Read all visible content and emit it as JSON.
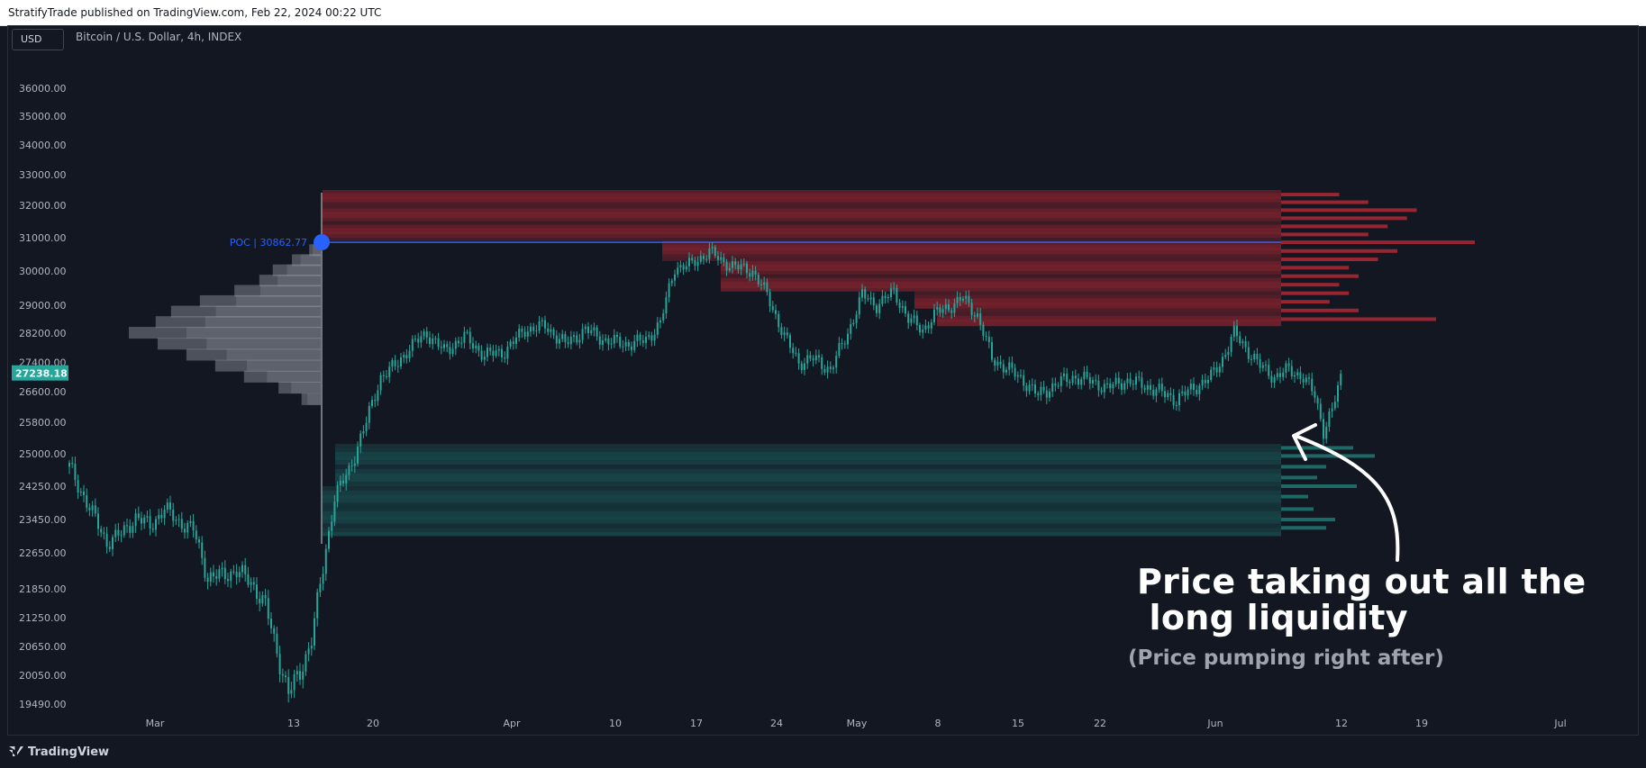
{
  "header": {
    "title": "StratifyTrade published on TradingView.com, Feb 22, 2024 00:22 UTC"
  },
  "toolbar": {
    "currency": "USD",
    "symbol": "Bitcoin / U.S. Dollar, 4h, INDEX"
  },
  "footer": {
    "brand": "TradingView"
  },
  "colors": {
    "background": "#131722",
    "candle": "#26a69a",
    "bear_zone": "#b22833",
    "bull_zone": "#1f7e78",
    "poc": "#2962ff",
    "profile": "#9598a1"
  },
  "chart_data": {
    "type": "candlestick",
    "title": "Bitcoin / U.S. Dollar, 4h, INDEX",
    "y_ticks": [
      "36000.00",
      "35000.00",
      "34000.00",
      "33000.00",
      "32000.00",
      "31000.00",
      "30000.00",
      "29000.00",
      "28200.00",
      "26600.00",
      "25800.00",
      "25000.00",
      "24250.00",
      "23450.00",
      "22650.00",
      "21850.00",
      "21250.00",
      "20650.00",
      "20050.00",
      "19490.00"
    ],
    "x_ticks": [
      "Mar",
      "13",
      "20",
      "Apr",
      "10",
      "17",
      "24",
      "May",
      "8",
      "15",
      "22",
      "Jun",
      "12",
      "19",
      "Jul"
    ],
    "last_price": "27238.18",
    "hidden_price_label": "27400.00",
    "poc": {
      "label": "POC | 30862.77",
      "price": 30862.77
    },
    "price_path": [
      {
        "x": 0,
        "p": 24700
      },
      {
        "x": 5,
        "p": 24000
      },
      {
        "x": 9,
        "p": 23450
      },
      {
        "x": 13,
        "p": 22900
      },
      {
        "x": 18,
        "p": 23100
      },
      {
        "x": 23,
        "p": 23500
      },
      {
        "x": 28,
        "p": 23300
      },
      {
        "x": 33,
        "p": 23700
      },
      {
        "x": 38,
        "p": 23400
      },
      {
        "x": 43,
        "p": 23200
      },
      {
        "x": 48,
        "p": 22100
      },
      {
        "x": 53,
        "p": 22150
      },
      {
        "x": 58,
        "p": 22250
      },
      {
        "x": 63,
        "p": 22000
      },
      {
        "x": 68,
        "p": 21500
      },
      {
        "x": 73,
        "p": 20300
      },
      {
        "x": 76,
        "p": 19700
      },
      {
        "x": 80,
        "p": 20100
      },
      {
        "x": 84,
        "p": 20800
      },
      {
        "x": 88,
        "p": 22300
      },
      {
        "x": 92,
        "p": 24000
      },
      {
        "x": 97,
        "p": 24600
      },
      {
        "x": 103,
        "p": 25800
      },
      {
        "x": 108,
        "p": 27000
      },
      {
        "x": 113,
        "p": 27300
      },
      {
        "x": 118,
        "p": 27800
      },
      {
        "x": 124,
        "p": 28200
      },
      {
        "x": 130,
        "p": 27700
      },
      {
        "x": 137,
        "p": 28100
      },
      {
        "x": 144,
        "p": 27600
      },
      {
        "x": 151,
        "p": 27700
      },
      {
        "x": 158,
        "p": 28300
      },
      {
        "x": 165,
        "p": 28400
      },
      {
        "x": 172,
        "p": 27900
      },
      {
        "x": 179,
        "p": 28300
      },
      {
        "x": 186,
        "p": 28000
      },
      {
        "x": 193,
        "p": 27900
      },
      {
        "x": 200,
        "p": 28000
      },
      {
        "x": 205,
        "p": 28500
      },
      {
        "x": 210,
        "p": 30100
      },
      {
        "x": 216,
        "p": 30200
      },
      {
        "x": 222,
        "p": 30600
      },
      {
        "x": 226,
        "p": 30300
      },
      {
        "x": 232,
        "p": 30100
      },
      {
        "x": 237,
        "p": 30000
      },
      {
        "x": 242,
        "p": 29300
      },
      {
        "x": 248,
        "p": 28100
      },
      {
        "x": 253,
        "p": 27400
      },
      {
        "x": 258,
        "p": 27500
      },
      {
        "x": 264,
        "p": 27200
      },
      {
        "x": 270,
        "p": 28200
      },
      {
        "x": 275,
        "p": 29300
      },
      {
        "x": 280,
        "p": 29000
      },
      {
        "x": 286,
        "p": 29400
      },
      {
        "x": 291,
        "p": 28600
      },
      {
        "x": 296,
        "p": 28300
      },
      {
        "x": 301,
        "p": 28800
      },
      {
        "x": 306,
        "p": 29000
      },
      {
        "x": 310,
        "p": 29200
      },
      {
        "x": 315,
        "p": 28700
      },
      {
        "x": 320,
        "p": 27500
      },
      {
        "x": 326,
        "p": 27200
      },
      {
        "x": 331,
        "p": 26900
      },
      {
        "x": 336,
        "p": 26500
      },
      {
        "x": 342,
        "p": 26800
      },
      {
        "x": 348,
        "p": 27000
      },
      {
        "x": 354,
        "p": 26900
      },
      {
        "x": 360,
        "p": 26700
      },
      {
        "x": 366,
        "p": 26900
      },
      {
        "x": 372,
        "p": 26800
      },
      {
        "x": 378,
        "p": 26600
      },
      {
        "x": 384,
        "p": 26400
      },
      {
        "x": 390,
        "p": 26700
      },
      {
        "x": 396,
        "p": 27000
      },
      {
        "x": 400,
        "p": 27500
      },
      {
        "x": 404,
        "p": 28200
      },
      {
        "x": 408,
        "p": 27800
      },
      {
        "x": 413,
        "p": 27300
      },
      {
        "x": 418,
        "p": 27000
      },
      {
        "x": 423,
        "p": 27200
      },
      {
        "x": 428,
        "p": 27000
      },
      {
        "x": 432,
        "p": 26500
      },
      {
        "x": 435,
        "p": 25600
      },
      {
        "x": 438,
        "p": 26100
      },
      {
        "x": 442,
        "p": 27238
      }
    ],
    "volume_profile_left": [
      {
        "p": 30450,
        "v": 0.06
      },
      {
        "p": 30150,
        "v": 0.15
      },
      {
        "p": 29850,
        "v": 0.25
      },
      {
        "p": 29550,
        "v": 0.32
      },
      {
        "p": 29250,
        "v": 0.45
      },
      {
        "p": 28950,
        "v": 0.63
      },
      {
        "p": 28650,
        "v": 0.78
      },
      {
        "p": 28350,
        "v": 0.86
      },
      {
        "p": 28050,
        "v": 1.0
      },
      {
        "p": 27750,
        "v": 0.85
      },
      {
        "p": 27450,
        "v": 0.7
      },
      {
        "p": 27150,
        "v": 0.55
      },
      {
        "p": 26850,
        "v": 0.4
      },
      {
        "p": 26550,
        "v": 0.22
      },
      {
        "p": 26250,
        "v": 0.1
      }
    ],
    "short_liquidity_zone": {
      "top": 32500,
      "bottom": 28450,
      "profile": [
        {
          "p": 32350,
          "v": 0.3
        },
        {
          "p": 32100,
          "v": 0.45
        },
        {
          "p": 31850,
          "v": 0.7
        },
        {
          "p": 31600,
          "v": 0.65
        },
        {
          "p": 31350,
          "v": 0.55
        },
        {
          "p": 31100,
          "v": 0.45
        },
        {
          "p": 30862,
          "v": 1.0
        },
        {
          "p": 30600,
          "v": 0.6
        },
        {
          "p": 30350,
          "v": 0.5
        },
        {
          "p": 30100,
          "v": 0.35
        },
        {
          "p": 29850,
          "v": 0.4
        },
        {
          "p": 29600,
          "v": 0.3
        },
        {
          "p": 29350,
          "v": 0.35
        },
        {
          "p": 29100,
          "v": 0.25
        },
        {
          "p": 28850,
          "v": 0.4
        },
        {
          "p": 28600,
          "v": 0.8
        }
      ]
    },
    "long_liquidity_zone": {
      "top": 25250,
      "bottom": 23050,
      "profile": [
        {
          "p": 25150,
          "v": 0.4
        },
        {
          "p": 24950,
          "v": 0.52
        },
        {
          "p": 24700,
          "v": 0.25
        },
        {
          "p": 24450,
          "v": 0.2
        },
        {
          "p": 24250,
          "v": 0.42
        },
        {
          "p": 24000,
          "v": 0.15
        },
        {
          "p": 23700,
          "v": 0.18
        },
        {
          "p": 23450,
          "v": 0.3
        },
        {
          "p": 23250,
          "v": 0.25
        }
      ]
    },
    "annotation": {
      "text": "Price taking out all the\n long liquidity",
      "subtext": "(Price pumping right after)"
    }
  }
}
